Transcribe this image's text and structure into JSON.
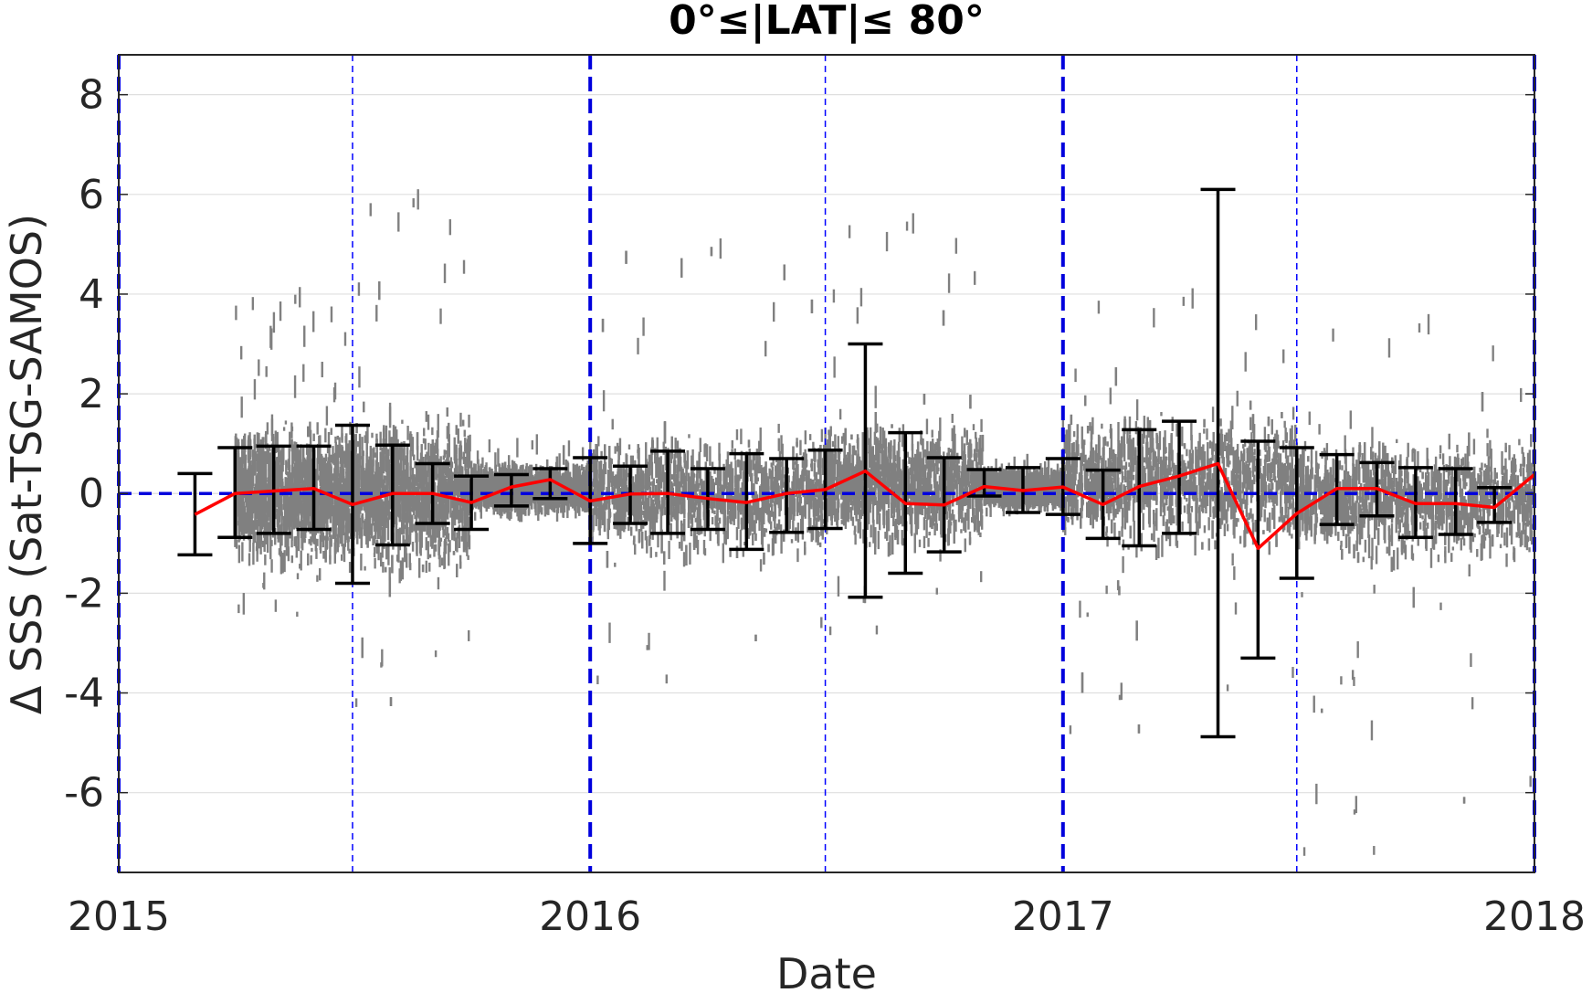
{
  "chart_data": {
    "type": "line",
    "title": "0°≤|LAT|≤ 80°",
    "xlabel": "Date",
    "ylabel": "Δ SSS (Sat-TSG-SAMOS)",
    "xlim": [
      "2015-01-01",
      "2018-01-01"
    ],
    "ylim": [
      -7.6,
      8.8
    ],
    "x_ticks": [
      "2015",
      "2016",
      "2017",
      "2018"
    ],
    "y_ticks": [
      8,
      6,
      4,
      2,
      0,
      -2,
      -4,
      -6
    ],
    "grid": true,
    "reference_line": {
      "y": 0,
      "color": "#0000dd",
      "style": "dashed"
    },
    "year_boundaries": [
      "2015-01-01",
      "2016-01-01",
      "2017-01-01",
      "2018-01-01"
    ],
    "mid_year_lines": [
      "2015-07-01",
      "2016-07-01",
      "2017-07-01"
    ],
    "series": [
      {
        "type": "scatter",
        "color": "#808080",
        "clusters": [
          {
            "start": "2015-04-01",
            "end": "2015-06-30",
            "center": 0.0,
            "spread": 0.9,
            "min": -2.5,
            "max": 4.0
          },
          {
            "start": "2015-07-01",
            "end": "2015-09-30",
            "center": 0.0,
            "spread": 1.0,
            "min": -4.5,
            "max": 6.0
          },
          {
            "start": "2015-10-01",
            "end": "2015-12-31",
            "center": 0.1,
            "spread": 0.3,
            "min": -0.5,
            "max": 1.0
          },
          {
            "start": "2016-01-01",
            "end": "2016-06-30",
            "center": 0.0,
            "spread": 0.8,
            "min": -4.0,
            "max": 5.0
          },
          {
            "start": "2016-07-01",
            "end": "2016-10-31",
            "center": 0.2,
            "spread": 0.8,
            "min": -3.0,
            "max": 5.5
          },
          {
            "start": "2016-11-01",
            "end": "2016-12-31",
            "center": 0.1,
            "spread": 0.2,
            "min": -0.4,
            "max": 0.6
          },
          {
            "start": "2017-01-01",
            "end": "2017-06-30",
            "center": 0.3,
            "spread": 0.9,
            "min": -5.0,
            "max": 4.0
          },
          {
            "start": "2017-07-01",
            "end": "2017-12-31",
            "center": -0.1,
            "spread": 0.8,
            "min": -7.5,
            "max": 3.5
          }
        ]
      },
      {
        "type": "errorbar",
        "color": "#000000",
        "x": [
          "2015-03-01",
          "2015-04-01",
          "2015-05-01",
          "2015-06-01",
          "2015-07-01",
          "2015-08-01",
          "2015-09-01",
          "2015-10-01",
          "2015-11-01",
          "2015-12-01",
          "2016-01-01",
          "2016-02-01",
          "2016-03-01",
          "2016-04-01",
          "2016-05-01",
          "2016-06-01",
          "2016-07-01",
          "2016-08-01",
          "2016-09-01",
          "2016-10-01",
          "2016-11-01",
          "2016-12-01",
          "2017-01-01",
          "2017-02-01",
          "2017-03-01",
          "2017-04-01",
          "2017-05-01",
          "2017-06-01",
          "2017-07-01",
          "2017-08-01",
          "2017-09-01",
          "2017-10-01",
          "2017-11-01",
          "2017-12-01"
        ],
        "mean": [
          -0.42,
          0.0,
          0.05,
          0.1,
          -0.22,
          0.0,
          0.0,
          -0.18,
          0.13,
          0.28,
          -0.15,
          -0.01,
          0.0,
          -0.1,
          -0.18,
          0.0,
          0.08,
          0.45,
          -0.2,
          -0.23,
          0.14,
          0.06,
          0.13,
          -0.22,
          0.14,
          0.35,
          0.6,
          -1.1,
          -0.4,
          0.1,
          0.1,
          -0.2,
          -0.2,
          -0.28
        ],
        "upper": [
          0.4,
          0.92,
          0.95,
          0.95,
          1.37,
          0.97,
          0.6,
          0.35,
          0.38,
          0.5,
          0.72,
          0.55,
          0.85,
          0.5,
          0.8,
          0.7,
          0.87,
          3.0,
          1.22,
          0.72,
          0.48,
          0.52,
          0.7,
          0.47,
          1.28,
          1.45,
          6.1,
          1.05,
          0.92,
          0.78,
          0.62,
          0.52,
          0.5,
          0.12
        ],
        "lower": [
          -1.23,
          -0.88,
          -0.8,
          -0.72,
          -1.8,
          -1.03,
          -0.6,
          -0.72,
          -0.25,
          -0.1,
          -1.0,
          -0.6,
          -0.8,
          -0.72,
          -1.12,
          -0.78,
          -0.7,
          -2.08,
          -1.6,
          -1.17,
          -0.05,
          -0.38,
          -0.42,
          -0.9,
          -1.05,
          -0.8,
          -4.88,
          -3.3,
          -1.7,
          -0.62,
          -0.45,
          -0.88,
          -0.82,
          -0.58
        ]
      },
      {
        "type": "line",
        "color": "#ff0000",
        "x": [
          "2015-03-01",
          "2015-04-01",
          "2015-05-01",
          "2015-06-01",
          "2015-07-01",
          "2015-08-01",
          "2015-09-01",
          "2015-10-01",
          "2015-11-01",
          "2015-12-01",
          "2016-01-01",
          "2016-02-01",
          "2016-03-01",
          "2016-04-01",
          "2016-05-01",
          "2016-06-01",
          "2016-07-01",
          "2016-08-01",
          "2016-09-01",
          "2016-10-01",
          "2016-11-01",
          "2016-12-01",
          "2017-01-01",
          "2017-02-01",
          "2017-03-01",
          "2017-04-01",
          "2017-05-01",
          "2017-06-01",
          "2017-07-01",
          "2017-08-01",
          "2017-09-01",
          "2017-10-01",
          "2017-11-01",
          "2017-12-01",
          "2018-01-01"
        ],
        "values": [
          -0.42,
          0.0,
          0.05,
          0.1,
          -0.22,
          0.0,
          0.0,
          -0.18,
          0.13,
          0.28,
          -0.15,
          -0.01,
          0.0,
          -0.1,
          -0.18,
          0.0,
          0.08,
          0.45,
          -0.2,
          -0.23,
          0.14,
          0.06,
          0.13,
          -0.22,
          0.14,
          0.35,
          0.6,
          -1.1,
          -0.4,
          0.1,
          0.1,
          -0.2,
          -0.2,
          -0.28,
          0.38
        ]
      }
    ]
  }
}
